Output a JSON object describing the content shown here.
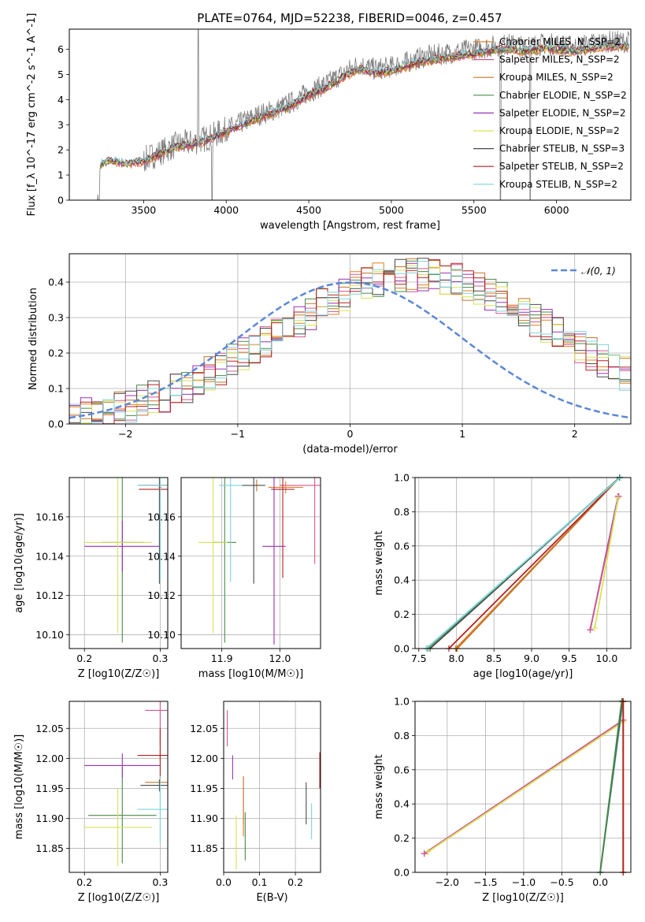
{
  "colors": [
    "#e67e22",
    "#d4578f",
    "#c1762a",
    "#4a8a4a",
    "#9b30b5",
    "#d7e355",
    "#4a4a4a",
    "#b22222",
    "#7fd3dc"
  ],
  "chart_data": [
    {
      "id": "spectrum",
      "type": "line",
      "title": "PLATE=0764, MJD=52238, FIBERID=0046, z=0.457",
      "xlabel": "wavelength [Angstrom, rest frame]",
      "ylabel": "Flux [f_λ 10^-17 erg cm^-2 s^-1 A^-1]",
      "xlim": [
        3050,
        6450
      ],
      "ylim": [
        0,
        6.8
      ],
      "xticks": [
        "3500",
        "4000",
        "4500",
        "5000",
        "5500",
        "6000"
      ],
      "yticks": [
        "0",
        "1",
        "2",
        "3",
        "4",
        "5",
        "6"
      ],
      "continuum": [
        [
          3220,
          0
        ],
        [
          3240,
          1.5
        ],
        [
          3300,
          1.6
        ],
        [
          3400,
          1.5
        ],
        [
          3500,
          1.6
        ],
        [
          3600,
          1.9
        ],
        [
          3700,
          2.2
        ],
        [
          3800,
          2.3
        ],
        [
          3900,
          2.5
        ],
        [
          4000,
          2.8
        ],
        [
          4100,
          3.1
        ],
        [
          4200,
          3.4
        ],
        [
          4300,
          3.6
        ],
        [
          4400,
          3.9
        ],
        [
          4500,
          4.3
        ],
        [
          4600,
          4.6
        ],
        [
          4700,
          5.0
        ],
        [
          4800,
          5.4
        ],
        [
          4900,
          5.2
        ],
        [
          5000,
          5.3
        ],
        [
          5100,
          5.5
        ],
        [
          5200,
          5.7
        ],
        [
          5300,
          5.8
        ],
        [
          5400,
          5.9
        ],
        [
          5500,
          6.0
        ],
        [
          5600,
          6.1
        ],
        [
          5700,
          6.2
        ],
        [
          5800,
          6.1
        ],
        [
          5900,
          6.2
        ],
        [
          6000,
          6.2
        ],
        [
          6100,
          6.1
        ],
        [
          6200,
          6.2
        ],
        [
          6300,
          6.3
        ],
        [
          6400,
          6.3
        ]
      ],
      "legend": [
        {
          "label": "Chabrier MILES, N_SSP=2"
        },
        {
          "label": "Salpeter MILES, N_SSP=2"
        },
        {
          "label": "Kroupa MILES, N_SSP=2"
        },
        {
          "label": "Chabrier ELODIE, N_SSP=2"
        },
        {
          "label": "Salpeter ELODIE, N_SSP=2"
        },
        {
          "label": "Kroupa ELODIE, N_SSP=2"
        },
        {
          "label": "Chabrier STELIB, N_SSP=3"
        },
        {
          "label": "Salpeter STELIB, N_SSP=2"
        },
        {
          "label": "Kroupa STELIB, N_SSP=2"
        }
      ],
      "legend_position": "upper-right"
    },
    {
      "id": "residuals",
      "type": "line",
      "xlabel": "(data-model)/error",
      "ylabel": "Normed distribution",
      "xlim": [
        -2.5,
        2.5
      ],
      "ylim": [
        0,
        0.48
      ],
      "xticks": [
        "−2",
        "−1",
        "0",
        "1",
        "2"
      ],
      "yticks": [
        "0.0",
        "0.1",
        "0.2",
        "0.3",
        "0.4"
      ],
      "gaussian": {
        "label": "𝒩(0, 1)",
        "mean": 0,
        "sigma": 1,
        "color": "#5b87d6"
      },
      "legend_position": "upper-right"
    },
    {
      "id": "age-vs-Z",
      "type": "scatter",
      "xlabel": "Z [log10(Z/Z☉)]",
      "ylabel": "age [log10(age/yr)]",
      "xlim": [
        0.18,
        0.31
      ],
      "ylim": [
        10.093,
        10.18
      ],
      "xticks": [
        "0.2",
        "0.3"
      ],
      "yticks": [
        "10.10",
        "10.12",
        "10.14",
        "10.16"
      ],
      "points": [
        {
          "series": 0,
          "x": 0.3,
          "y": 10.175,
          "xerr": 0.002,
          "yerr": 0.005
        },
        {
          "series": 1,
          "x": 0.3,
          "y": 10.176,
          "xerr": 0.028,
          "yerr": 0.04
        },
        {
          "series": 2,
          "x": 0.3,
          "y": 10.176,
          "xerr": 0.022,
          "yerr": 0.003
        },
        {
          "series": 3,
          "x": 0.25,
          "y": 10.147,
          "xerr": 0.028,
          "yerr": 0.051
        },
        {
          "series": 4,
          "x": 0.25,
          "y": 10.145,
          "xerr": 0.05,
          "yerr": 0.013
        },
        {
          "series": 5,
          "x": 0.244,
          "y": 10.147,
          "xerr": 0.045,
          "yerr": 0.046
        },
        {
          "series": 6,
          "x": 0.299,
          "y": 10.176,
          "xerr": 0.028,
          "yerr": 0.05
        },
        {
          "series": 7,
          "x": 0.3,
          "y": 10.174,
          "xerr": 0.028,
          "yerr": 0.002
        },
        {
          "series": 8,
          "x": 0.3,
          "y": 10.176,
          "xerr": 0.03,
          "yerr": 0.049
        }
      ]
    },
    {
      "id": "age-vs-mass",
      "type": "scatter",
      "xlabel": "mass [log10(M/M☉)]",
      "xlim": [
        11.83,
        12.07
      ],
      "ylim": [
        10.093,
        10.18
      ],
      "xticks": [
        "11.9",
        "12.0"
      ],
      "yticks": [
        "10.10",
        "10.12",
        "10.14",
        "10.16"
      ],
      "points": [
        {
          "series": 0,
          "x": 12.01,
          "y": 10.175,
          "xerr": 0.03,
          "yerr": 0.003
        },
        {
          "series": 1,
          "x": 12.06,
          "y": 10.176,
          "xerr": 0.06,
          "yerr": 0.04
        },
        {
          "series": 2,
          "x": 11.96,
          "y": 10.176,
          "xerr": 0.005,
          "yerr": 0.003
        },
        {
          "series": 3,
          "x": 11.905,
          "y": 10.147,
          "xerr": 0.02,
          "yerr": 0.051
        },
        {
          "series": 4,
          "x": 11.99,
          "y": 10.145,
          "xerr": 0.02,
          "yerr": 0.05
        },
        {
          "series": 5,
          "x": 11.885,
          "y": 10.147,
          "xerr": 0.025,
          "yerr": 0.046
        },
        {
          "series": 6,
          "x": 11.955,
          "y": 10.176,
          "xerr": 0.02,
          "yerr": 0.05
        },
        {
          "series": 7,
          "x": 12.005,
          "y": 10.174,
          "xerr": 0.02,
          "yerr": 0.045
        },
        {
          "series": 8,
          "x": 11.915,
          "y": 10.176,
          "xerr": 0.02,
          "yerr": 0.049
        }
      ]
    },
    {
      "id": "mass-weight-vs-age",
      "type": "line",
      "xlabel": "age [log10(age/yr)]",
      "ylabel": "mass weight",
      "xlim": [
        7.45,
        10.32
      ],
      "ylim": [
        0,
        1
      ],
      "xticks": [
        "7.5",
        "8.0",
        "8.5",
        "9.0",
        "9.5",
        "10.0"
      ],
      "yticks": [
        "0.0",
        "0.2",
        "0.4",
        "0.6",
        "0.8",
        "1.0"
      ],
      "lines": [
        {
          "series": 0,
          "points": [
            [
              7.99,
              0
            ],
            [
              10.17,
              1.0
            ]
          ]
        },
        {
          "series": 2,
          "points": [
            [
              8.01,
              0
            ],
            [
              10.17,
              1.0
            ]
          ]
        },
        {
          "series": 7,
          "points": [
            [
              7.9,
              0
            ],
            [
              10.17,
              1.0
            ]
          ]
        },
        {
          "series": 6,
          "points": [
            [
              7.65,
              0
            ],
            [
              10.17,
              1.0
            ]
          ]
        },
        {
          "series": 3,
          "points": [
            [
              7.62,
              0
            ],
            [
              10.17,
              1.0
            ]
          ]
        },
        {
          "series": 8,
          "points": [
            [
              7.6,
              0
            ],
            [
              10.18,
              1.0
            ]
          ]
        },
        {
          "series": 4,
          "points": [
            [
              9.78,
              0.11
            ],
            [
              10.15,
              0.89
            ]
          ]
        },
        {
          "series": 1,
          "points": [
            [
              9.78,
              0.11
            ],
            [
              10.16,
              0.89
            ]
          ]
        },
        {
          "series": 5,
          "points": [
            [
              9.84,
              0.12
            ],
            [
              10.15,
              0.88
            ]
          ]
        }
      ]
    },
    {
      "id": "mass-vs-Z",
      "type": "scatter",
      "xlabel": "Z [log10(Z/Z☉)]",
      "ylabel": "mass [log10(M/M☉)]",
      "xlim": [
        0.18,
        0.31
      ],
      "ylim": [
        11.81,
        12.095
      ],
      "xticks": [
        "0.2",
        "0.3"
      ],
      "yticks": [
        "11.85",
        "11.90",
        "11.95",
        "12.00",
        "12.05"
      ],
      "points": [
        {
          "series": 0,
          "x": 0.3,
          "y": 12.005,
          "xerr": 0.002,
          "yerr": 0.01
        },
        {
          "series": 1,
          "x": 0.3,
          "y": 12.08,
          "xerr": 0.02,
          "yerr": 0.06
        },
        {
          "series": 2,
          "x": 0.3,
          "y": 11.96,
          "xerr": 0.02,
          "yerr": 0.005
        },
        {
          "series": 3,
          "x": 0.25,
          "y": 11.905,
          "xerr": 0.045,
          "yerr": 0.08
        },
        {
          "series": 4,
          "x": 0.25,
          "y": 11.988,
          "xerr": 0.05,
          "yerr": 0.02
        },
        {
          "series": 5,
          "x": 0.244,
          "y": 11.885,
          "xerr": 0.045,
          "yerr": 0.065
        },
        {
          "series": 6,
          "x": 0.299,
          "y": 11.955,
          "xerr": 0.025,
          "yerr": 0.01
        },
        {
          "series": 7,
          "x": 0.3,
          "y": 12.005,
          "xerr": 0.03,
          "yerr": 0.045
        },
        {
          "series": 8,
          "x": 0.3,
          "y": 11.915,
          "xerr": 0.03,
          "yerr": 0.055
        }
      ]
    },
    {
      "id": "mass-vs-EBV",
      "type": "scatter",
      "xlabel": "E(B-V)",
      "xlim": [
        0,
        0.27
      ],
      "ylim": [
        11.81,
        12.095
      ],
      "xticks": [
        "0.0",
        "0.1",
        "0.2"
      ],
      "yticks": [
        "11.85",
        "11.90",
        "11.95",
        "12.00",
        "12.05"
      ],
      "points": [
        {
          "series": 0,
          "x": 0.055,
          "y": 11.92,
          "xerr": 0.0,
          "yerr": 0.05
        },
        {
          "series": 1,
          "x": 0.01,
          "y": 12.05,
          "xerr": 0.0,
          "yerr": 0.03
        },
        {
          "series": 2,
          "x": 0.055,
          "y": 11.93,
          "xerr": 0.0,
          "yerr": 0.04
        },
        {
          "series": 3,
          "x": 0.06,
          "y": 11.87,
          "xerr": 0.0,
          "yerr": 0.04
        },
        {
          "series": 4,
          "x": 0.025,
          "y": 11.985,
          "xerr": 0.0,
          "yerr": 0.02
        },
        {
          "series": 5,
          "x": 0.035,
          "y": 11.86,
          "xerr": 0.0,
          "yerr": 0.045
        },
        {
          "series": 6,
          "x": 0.23,
          "y": 11.925,
          "xerr": 0.0,
          "yerr": 0.035
        },
        {
          "series": 7,
          "x": 0.268,
          "y": 11.98,
          "xerr": 0.0,
          "yerr": 0.03
        },
        {
          "series": 8,
          "x": 0.245,
          "y": 11.895,
          "xerr": 0.0,
          "yerr": 0.03
        }
      ]
    },
    {
      "id": "mass-weight-vs-Z",
      "type": "line",
      "xlabel": "Z [log10(Z/Z☉)]",
      "ylabel": "mass weight",
      "xlim": [
        -2.42,
        0.4
      ],
      "ylim": [
        0,
        1
      ],
      "xticks": [
        "−2.0",
        "−1.5",
        "−1.0",
        "−0.5",
        "0.0"
      ],
      "yticks": [
        "0.0",
        "0.2",
        "0.4",
        "0.6",
        "0.8",
        "1.0"
      ],
      "lines": [
        {
          "series": 4,
          "points": [
            [
              -2.3,
              0.11
            ],
            [
              0.3,
              0.89
            ]
          ]
        },
        {
          "series": 1,
          "points": [
            [
              -2.3,
              0.11
            ],
            [
              0.3,
              0.89
            ]
          ]
        },
        {
          "series": 5,
          "points": [
            [
              -2.25,
              0.12
            ],
            [
              0.3,
              0.88
            ]
          ]
        },
        {
          "series": 8,
          "points": [
            [
              0.0,
              0
            ],
            [
              0.3,
              1.0
            ]
          ]
        },
        {
          "series": 6,
          "points": [
            [
              0.0,
              0
            ],
            [
              0.29,
              1.0
            ]
          ]
        },
        {
          "series": 3,
          "points": [
            [
              0.0,
              0
            ],
            [
              0.28,
              1.0
            ]
          ]
        },
        {
          "series": 0,
          "points": [
            [
              0.3,
              0
            ],
            [
              0.3,
              1.0
            ]
          ]
        },
        {
          "series": 2,
          "points": [
            [
              0.3,
              0
            ],
            [
              0.3,
              1.0
            ]
          ]
        },
        {
          "series": 7,
          "points": [
            [
              0.3,
              0
            ],
            [
              0.3,
              1.0
            ]
          ]
        }
      ]
    }
  ]
}
